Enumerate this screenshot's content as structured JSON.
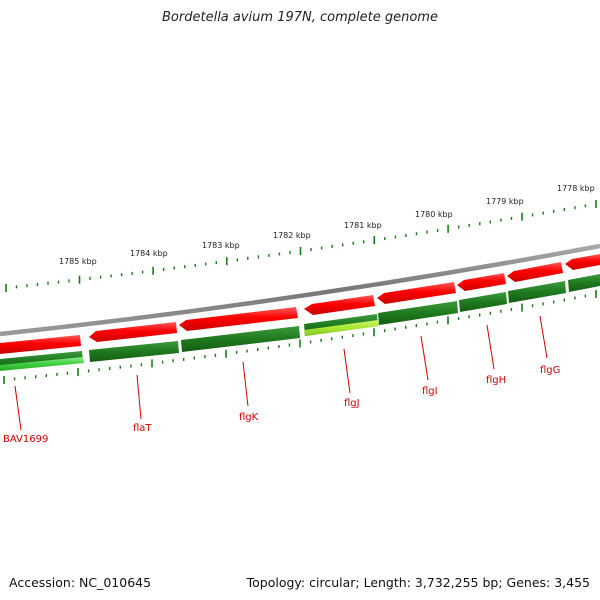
{
  "title": "Bordetella avium 197N, complete genome",
  "footer": {
    "accession": "Accession: NC_010645",
    "summary": "Topology: circular; Length: 3,732,255 bp; Genes: 3,455"
  },
  "colors": {
    "backbone": "#8a8a8a",
    "reverse_strand": "#ff0000",
    "forward_strand_gene": "#1f7a1f",
    "highlight_gene": "#a6e832",
    "tick_marks": "#1a7a1a",
    "label_color": "#d40000"
  },
  "kbp_labels": [
    {
      "text": "1778 kbp"
    },
    {
      "text": "1779 kbp"
    },
    {
      "text": "1780 kbp"
    },
    {
      "text": "1781 kbp"
    },
    {
      "text": "1782 kbp"
    },
    {
      "text": "1783 kbp"
    },
    {
      "text": "1784 kbp"
    },
    {
      "text": "1785 kbp"
    }
  ],
  "gene_labels": [
    {
      "text": "BAV1699"
    },
    {
      "text": "flaT"
    },
    {
      "text": "flgK"
    },
    {
      "text": "flgJ"
    },
    {
      "text": "flgI"
    },
    {
      "text": "flgH"
    },
    {
      "text": "flgG"
    }
  ]
}
